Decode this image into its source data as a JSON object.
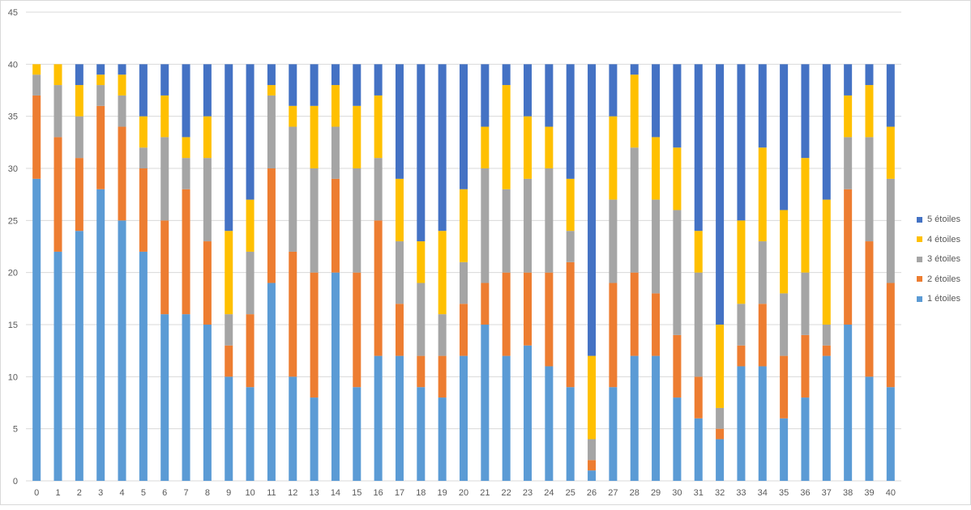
{
  "chart_data": {
    "type": "bar",
    "stacked": true,
    "title": "",
    "xlabel": "",
    "ylabel": "",
    "ylim": [
      0,
      45
    ],
    "yticks": [
      0,
      5,
      10,
      15,
      20,
      25,
      30,
      35,
      40,
      45
    ],
    "grid": true,
    "legend_position": "right",
    "categories": [
      "0",
      "1",
      "2",
      "3",
      "4",
      "5",
      "6",
      "7",
      "8",
      "9",
      "10",
      "11",
      "12",
      "13",
      "14",
      "15",
      "16",
      "17",
      "18",
      "19",
      "20",
      "21",
      "22",
      "23",
      "24",
      "25",
      "26",
      "27",
      "28",
      "29",
      "30",
      "31",
      "32",
      "33",
      "34",
      "35",
      "36",
      "37",
      "38",
      "39",
      "40"
    ],
    "series": [
      {
        "name": "1 étoiles",
        "color": "#5b9bd5",
        "values": [
          29,
          22,
          24,
          28,
          25,
          22,
          16,
          16,
          15,
          10,
          9,
          19,
          10,
          8,
          20,
          9,
          12,
          12,
          9,
          8,
          12,
          15,
          12,
          13,
          11,
          9,
          1,
          9,
          12,
          12,
          8,
          6,
          4,
          11,
          11,
          6,
          8,
          12,
          15,
          10,
          9
        ]
      },
      {
        "name": "2 étoiles",
        "color": "#ed7d31",
        "values": [
          8,
          11,
          7,
          8,
          9,
          8,
          9,
          12,
          8,
          3,
          7,
          11,
          12,
          12,
          9,
          11,
          13,
          5,
          3,
          4,
          5,
          4,
          8,
          7,
          9,
          12,
          1,
          10,
          8,
          6,
          6,
          4,
          1,
          2,
          6,
          6,
          6,
          1,
          13,
          13,
          10
        ]
      },
      {
        "name": "3 étoiles",
        "color": "#a5a5a5",
        "values": [
          2,
          5,
          4,
          2,
          3,
          2,
          8,
          3,
          8,
          3,
          6,
          7,
          12,
          10,
          5,
          10,
          6,
          6,
          7,
          4,
          4,
          11,
          8,
          9,
          10,
          3,
          2,
          8,
          12,
          9,
          12,
          10,
          2,
          4,
          6,
          6,
          6,
          2,
          5,
          10,
          10
        ]
      },
      {
        "name": "4 étoiles",
        "color": "#ffc000",
        "values": [
          1,
          2,
          3,
          1,
          2,
          3,
          4,
          2,
          4,
          8,
          5,
          1,
          2,
          6,
          4,
          6,
          6,
          6,
          4,
          8,
          7,
          4,
          10,
          6,
          4,
          5,
          8,
          8,
          7,
          6,
          6,
          4,
          8,
          8,
          9,
          8,
          11,
          12,
          4,
          5,
          5
        ]
      },
      {
        "name": "5 étoiles",
        "color": "#4472c4",
        "values": [
          0,
          0,
          2,
          1,
          1,
          5,
          3,
          7,
          5,
          16,
          13,
          2,
          4,
          4,
          2,
          4,
          3,
          11,
          17,
          16,
          12,
          6,
          2,
          5,
          6,
          11,
          28,
          5,
          1,
          7,
          8,
          16,
          25,
          15,
          8,
          14,
          9,
          13,
          3,
          2,
          6
        ]
      }
    ]
  }
}
